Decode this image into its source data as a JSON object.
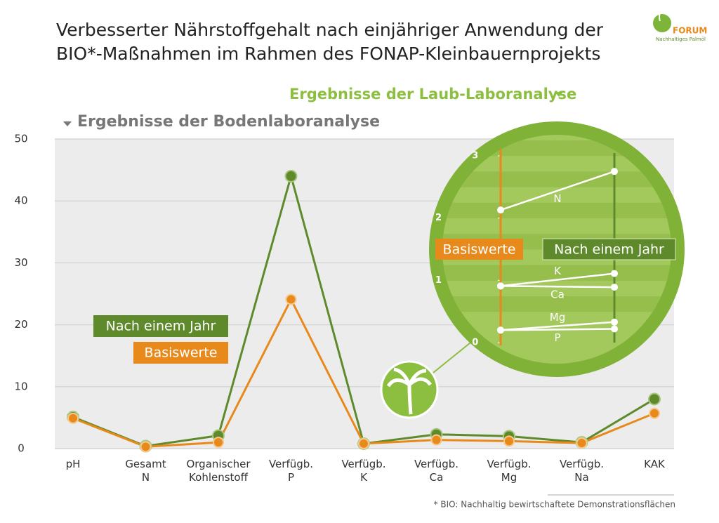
{
  "header": {
    "title_lines": [
      "Verbesserter Nährstoffgehalt nach einjähriger Anwendung der",
      "BIO*-Maßnahmen im Rahmen des FONAP-Kleinbauernprojekts"
    ]
  },
  "logo": {
    "name": "FORUM",
    "tagline": "Nachhaltiges Palmöl"
  },
  "footnote": "* BIO: Nachhaltig bewirtschaftete Demonstrationsflächen",
  "chart_data": [
    {
      "type": "line",
      "title": "Ergebnisse der Bodenlaboranalyse",
      "categories": [
        "pH",
        "Gesamt\nN",
        "Organischer\nKohlenstoff",
        "Verfügb.\nP",
        "Verfügb.\nK",
        "Verfügb.\nCa",
        "Verfügb.\nMg",
        "Verfügb.\nNa",
        "KAK"
      ],
      "series": [
        {
          "name": "Nach einem Jahr",
          "color": "#5e8a2c",
          "values": [
            5.1,
            0.4,
            2.1,
            44,
            0.8,
            2.3,
            2.0,
            1.0,
            8.0
          ]
        },
        {
          "name": "Basiswerte",
          "color": "#e8891c",
          "values": [
            4.9,
            0.3,
            1.0,
            24.1,
            0.8,
            1.4,
            1.2,
            0.9,
            5.7
          ]
        }
      ],
      "ylim": [
        0,
        50
      ],
      "yticks": [
        0,
        10,
        20,
        30,
        40,
        50
      ],
      "grid": true,
      "legend": "center-left"
    },
    {
      "type": "slope",
      "title": "Ergebnisse der Laub-Laboranalyse",
      "categories": [
        "N",
        "K",
        "Ca",
        "Mg",
        "P"
      ],
      "series": [
        {
          "name": "Basiswerte",
          "color": "#e8891c",
          "values": [
            2.13,
            0.91,
            0.91,
            0.2,
            0.2
          ]
        },
        {
          "name": "Nach einem Jahr",
          "color": "#5e8a2c",
          "values": [
            2.75,
            1.11,
            0.89,
            0.33,
            0.22
          ]
        }
      ],
      "ylim": [
        0,
        3
      ],
      "yticks": [
        0,
        1,
        2,
        3
      ]
    }
  ]
}
